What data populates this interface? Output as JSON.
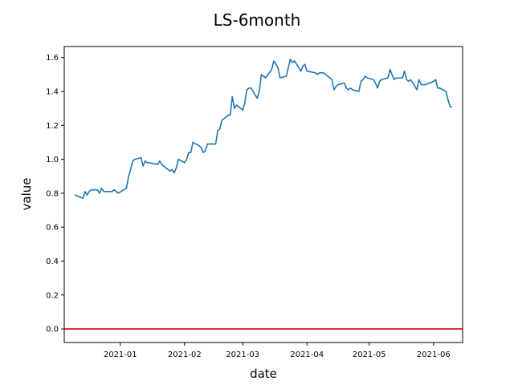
{
  "chart_data": {
    "type": "line",
    "title": "LS-6month",
    "xlabel": "date",
    "ylabel": "value",
    "x_ticks": [
      "2021-01",
      "2021-02",
      "2021-03",
      "2021-04",
      "2021-05",
      "2021-06"
    ],
    "x_tick_dates": [
      "2021-01-01",
      "2021-02-01",
      "2021-03-01",
      "2021-04-01",
      "2021-05-01",
      "2021-06-01"
    ],
    "y_ticks": [
      "0.0",
      "0.2",
      "0.4",
      "0.6",
      "0.8",
      "1.0",
      "1.2",
      "1.4",
      "1.6"
    ],
    "xlim": [
      "2020-12-05",
      "2021-06-15"
    ],
    "ylim": [
      -0.08,
      1.665
    ],
    "grid": false,
    "colors": {
      "series": "#1f77b4",
      "reference_line": "#e41a1c"
    },
    "reference_line": {
      "y": 0.0
    },
    "series": [
      {
        "x": [
          "2020-12-10",
          "2020-12-14",
          "2020-12-15",
          "2020-12-16",
          "2020-12-17",
          "2020-12-18",
          "2020-12-21",
          "2020-12-22",
          "2020-12-23",
          "2020-12-24",
          "2020-12-28",
          "2020-12-29",
          "2020-12-30",
          "2020-12-31",
          "2021-01-04",
          "2021-01-05",
          "2021-01-06",
          "2021-01-07",
          "2021-01-08",
          "2021-01-11",
          "2021-01-12",
          "2021-01-13",
          "2021-01-14",
          "2021-01-15",
          "2021-01-19",
          "2021-01-20",
          "2021-01-21",
          "2021-01-22",
          "2021-01-25",
          "2021-01-26",
          "2021-01-27",
          "2021-01-28",
          "2021-01-29",
          "2021-02-01",
          "2021-02-02",
          "2021-02-03",
          "2021-02-04",
          "2021-02-05",
          "2021-02-08",
          "2021-02-09",
          "2021-02-10",
          "2021-02-11",
          "2021-02-12",
          "2021-02-16",
          "2021-02-17",
          "2021-02-18",
          "2021-02-19",
          "2021-02-22",
          "2021-02-23",
          "2021-02-24",
          "2021-02-25",
          "2021-02-26",
          "2021-03-01",
          "2021-03-02",
          "2021-03-03",
          "2021-03-04",
          "2021-03-05",
          "2021-03-08",
          "2021-03-09",
          "2021-03-10",
          "2021-03-11",
          "2021-03-12",
          "2021-03-15",
          "2021-03-16",
          "2021-03-17",
          "2021-03-18",
          "2021-03-19",
          "2021-03-22",
          "2021-03-23",
          "2021-03-24",
          "2021-03-25",
          "2021-03-26",
          "2021-03-29",
          "2021-03-30",
          "2021-03-31",
          "2021-04-01",
          "2021-04-05",
          "2021-04-06",
          "2021-04-07",
          "2021-04-08",
          "2021-04-09",
          "2021-04-12",
          "2021-04-13",
          "2021-04-14",
          "2021-04-15",
          "2021-04-16",
          "2021-04-19",
          "2021-04-20",
          "2021-04-21",
          "2021-04-22",
          "2021-04-23",
          "2021-04-26",
          "2021-04-27",
          "2021-04-28",
          "2021-04-29",
          "2021-04-30",
          "2021-05-03",
          "2021-05-04",
          "2021-05-05",
          "2021-05-06",
          "2021-05-07",
          "2021-05-10",
          "2021-05-11",
          "2021-05-12",
          "2021-05-13",
          "2021-05-14",
          "2021-05-17",
          "2021-05-18",
          "2021-05-19",
          "2021-05-20",
          "2021-05-21",
          "2021-05-24",
          "2021-05-25",
          "2021-05-26",
          "2021-05-27",
          "2021-05-28",
          "2021-06-01",
          "2021-06-02",
          "2021-06-03",
          "2021-06-04",
          "2021-06-07",
          "2021-06-08",
          "2021-06-09",
          "2021-06-10"
        ],
        "y": [
          0.79,
          0.77,
          0.81,
          0.79,
          0.81,
          0.82,
          0.82,
          0.8,
          0.83,
          0.81,
          0.81,
          0.82,
          0.81,
          0.8,
          0.83,
          0.9,
          0.94,
          0.99,
          1.0,
          1.01,
          0.96,
          0.99,
          0.98,
          0.98,
          0.97,
          0.99,
          0.97,
          0.96,
          0.93,
          0.94,
          0.92,
          0.95,
          1.0,
          0.98,
          1.0,
          1.04,
          1.04,
          1.1,
          1.08,
          1.07,
          1.04,
          1.05,
          1.09,
          1.09,
          1.17,
          1.18,
          1.23,
          1.26,
          1.26,
          1.37,
          1.3,
          1.32,
          1.29,
          1.33,
          1.41,
          1.42,
          1.42,
          1.36,
          1.4,
          1.5,
          1.49,
          1.48,
          1.53,
          1.58,
          1.56,
          1.54,
          1.48,
          1.49,
          1.54,
          1.59,
          1.57,
          1.58,
          1.52,
          1.55,
          1.56,
          1.52,
          1.51,
          1.5,
          1.51,
          1.51,
          1.51,
          1.48,
          1.47,
          1.41,
          1.43,
          1.44,
          1.45,
          1.42,
          1.41,
          1.42,
          1.41,
          1.4,
          1.46,
          1.47,
          1.49,
          1.48,
          1.47,
          1.45,
          1.42,
          1.46,
          1.47,
          1.48,
          1.53,
          1.5,
          1.47,
          1.48,
          1.48,
          1.52,
          1.47,
          1.46,
          1.47,
          1.41,
          1.47,
          1.44,
          1.44,
          1.44,
          1.46,
          1.47,
          1.42,
          1.42,
          1.4,
          1.35,
          1.31,
          1.31
        ]
      }
    ]
  }
}
